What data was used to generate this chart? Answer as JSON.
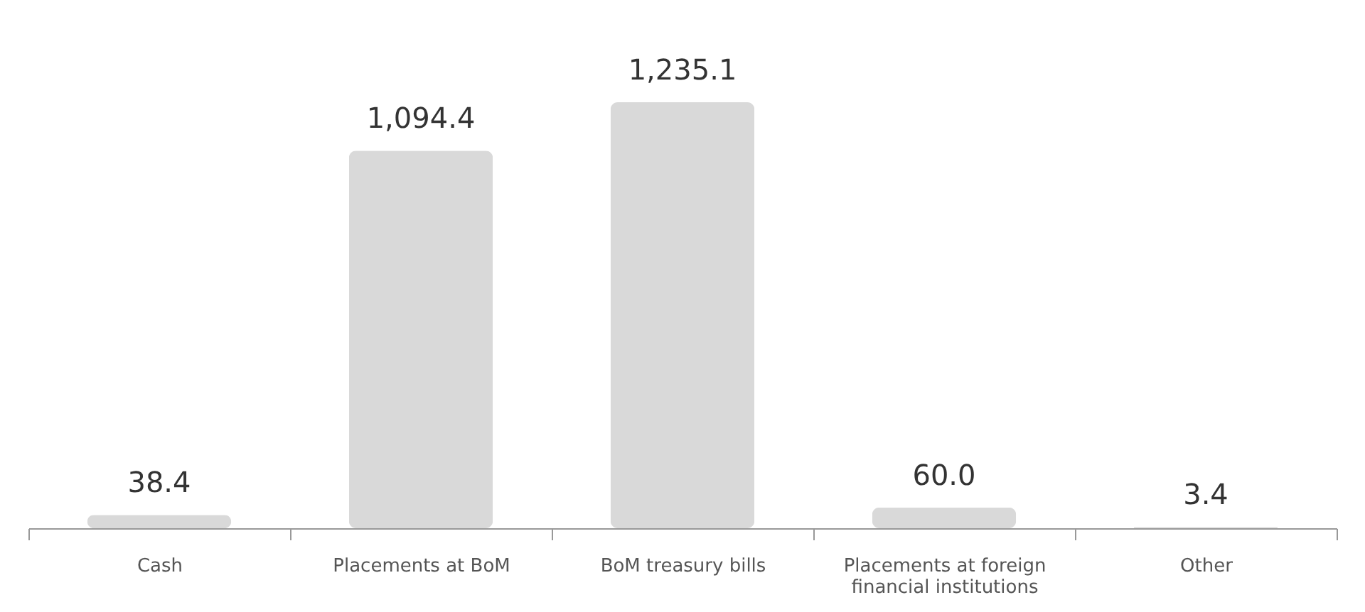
{
  "chart_data": {
    "type": "bar",
    "categories": [
      "Cash",
      "Placements at BoM",
      "BoM treasury bills",
      "Placements at foreign financial institutions",
      "Other"
    ],
    "values": [
      38.4,
      1094.4,
      1235.1,
      60.0,
      3.4
    ],
    "value_labels": [
      "38.4",
      "1,094.4",
      "1,235.1",
      "60.0",
      "3.4"
    ],
    "color": "#d9d9d9"
  }
}
